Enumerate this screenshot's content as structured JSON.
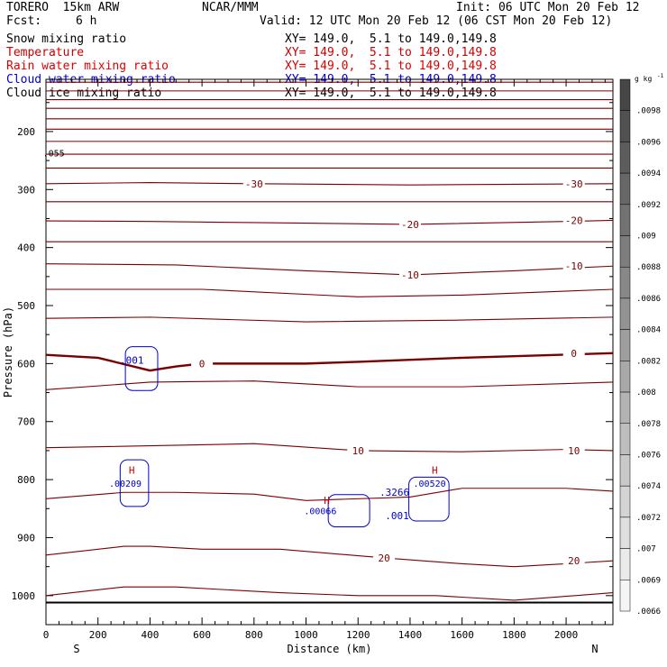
{
  "header": {
    "model": "TORERO  15km ARW",
    "center": "NCAR/MMM",
    "init": "Init: 06 UTC Mon 20 Feb 12",
    "fcst_label": "Fcst:",
    "fcst_value": "6 h",
    "valid": "Valid: 12 UTC Mon 20 Feb 12 (06 CST Mon 20 Feb 12)"
  },
  "fields": [
    {
      "name": "Snow mixing ratio",
      "color": "#000000",
      "xy": "XY= 149.0,  5.1 to 149.0,149.8"
    },
    {
      "name": "Temperature",
      "color": "#cc0000",
      "xy": "XY= 149.0,  5.1 to 149.0,149.8"
    },
    {
      "name": "Rain water mixing ratio",
      "color": "#dd0000",
      "xy": "XY= 149.0,  5.1 to 149.0,149.8"
    },
    {
      "name": "Cloud water mixing ratio",
      "color": "#0000cc",
      "xy": "XY= 149.0,  5.1 to 149.0,149.8"
    },
    {
      "name": "Cloud ice mixing ratio",
      "color": "#000000",
      "xy": "XY= 149.0,  5.1 to 149.0,149.8"
    }
  ],
  "colorbar": {
    "unit": "g kg",
    "unit_exp": "-1",
    "ticks": [
      ".0098",
      ".0096",
      ".0094",
      ".0092",
      ".009",
      ".0088",
      ".0086",
      ".0084",
      ".0082",
      ".008",
      ".0078",
      ".0076",
      ".0074",
      ".0072",
      ".007",
      ".0069",
      ".0066"
    ]
  },
  "chart_data": {
    "type": "contour cross-section",
    "xlabel": "Distance (km)",
    "ylabel": "Pressure (hPa)",
    "xlim": [
      0,
      2180
    ],
    "ylim": [
      1050,
      110
    ],
    "x_ticks": [
      0,
      200,
      400,
      600,
      800,
      1000,
      1200,
      1400,
      1600,
      1800,
      2000
    ],
    "y_ticks": [
      200,
      300,
      400,
      500,
      600,
      700,
      800,
      900,
      1000
    ],
    "endpoint_labels": {
      "left": "S",
      "right": "N"
    },
    "surface_pressure": 1012,
    "temperature_isotherms": [
      {
        "label": "",
        "points": [
          [
            0,
            115
          ],
          [
            2180,
            115
          ]
        ]
      },
      {
        "label": "",
        "points": [
          [
            0,
            130
          ],
          [
            2180,
            130
          ]
        ]
      },
      {
        "label": "",
        "points": [
          [
            0,
            145
          ],
          [
            2180,
            145
          ]
        ]
      },
      {
        "label": "",
        "points": [
          [
            0,
            160
          ],
          [
            2180,
            160
          ]
        ]
      },
      {
        "label": "",
        "points": [
          [
            0,
            178
          ],
          [
            2180,
            178
          ]
        ]
      },
      {
        "label": "",
        "points": [
          [
            0,
            196
          ],
          [
            2180,
            196
          ]
        ]
      },
      {
        "label": "",
        "points": [
          [
            0,
            217
          ],
          [
            2180,
            217
          ]
        ]
      },
      {
        "label": "",
        "points": [
          [
            0,
            239
          ],
          [
            2180,
            239
          ]
        ]
      },
      {
        "label": "",
        "points": [
          [
            0,
            263
          ],
          [
            2180,
            263
          ]
        ]
      },
      {
        "label": "-30",
        "points": [
          [
            0,
            290
          ],
          [
            400,
            288
          ],
          [
            800,
            290
          ],
          [
            1400,
            292
          ],
          [
            2180,
            290
          ]
        ]
      },
      {
        "label": "",
        "points": [
          [
            0,
            321
          ],
          [
            2180,
            321
          ]
        ]
      },
      {
        "label": "-20",
        "points": [
          [
            0,
            354
          ],
          [
            400,
            355
          ],
          [
            800,
            357
          ],
          [
            1400,
            360
          ],
          [
            2000,
            355
          ],
          [
            2180,
            353
          ]
        ]
      },
      {
        "label": "",
        "points": [
          [
            0,
            390
          ],
          [
            2180,
            390
          ]
        ]
      },
      {
        "label": "-10",
        "points": [
          [
            0,
            428
          ],
          [
            500,
            430
          ],
          [
            1000,
            440
          ],
          [
            1400,
            447
          ],
          [
            1800,
            440
          ],
          [
            2180,
            432
          ]
        ]
      },
      {
        "label": "",
        "points": [
          [
            0,
            472
          ],
          [
            600,
            472
          ],
          [
            1200,
            485
          ],
          [
            1600,
            482
          ],
          [
            2180,
            472
          ]
        ]
      },
      {
        "label": "",
        "points": [
          [
            0,
            522
          ],
          [
            400,
            520
          ],
          [
            1000,
            528
          ],
          [
            1600,
            525
          ],
          [
            2180,
            520
          ]
        ]
      },
      {
        "label": "0",
        "bold": true,
        "points": [
          [
            0,
            585
          ],
          [
            200,
            590
          ],
          [
            400,
            612
          ],
          [
            500,
            605
          ],
          [
            600,
            600
          ],
          [
            1000,
            600
          ],
          [
            1200,
            597
          ],
          [
            1600,
            590
          ],
          [
            2180,
            582
          ]
        ]
      },
      {
        "label": "",
        "points": [
          [
            0,
            645
          ],
          [
            400,
            632
          ],
          [
            800,
            630
          ],
          [
            1200,
            640
          ],
          [
            1600,
            640
          ],
          [
            2180,
            632
          ]
        ]
      },
      {
        "label": "10",
        "points": [
          [
            0,
            745
          ],
          [
            600,
            740
          ],
          [
            800,
            738
          ],
          [
            1200,
            750
          ],
          [
            1600,
            752
          ],
          [
            2000,
            748
          ],
          [
            2180,
            750
          ]
        ]
      },
      {
        "label": "",
        "points": [
          [
            0,
            833
          ],
          [
            300,
            822
          ],
          [
            500,
            822
          ],
          [
            800,
            825
          ],
          [
            1000,
            836
          ],
          [
            1400,
            830
          ],
          [
            1600,
            815
          ],
          [
            2000,
            815
          ],
          [
            2180,
            820
          ]
        ]
      },
      {
        "label": "20",
        "points": [
          [
            0,
            930
          ],
          [
            300,
            915
          ],
          [
            400,
            915
          ],
          [
            600,
            920
          ],
          [
            900,
            920
          ],
          [
            1300,
            935
          ],
          [
            1600,
            945
          ],
          [
            1800,
            950
          ],
          [
            2000,
            945
          ],
          [
            2180,
            940
          ]
        ]
      },
      {
        "label": "",
        "points": [
          [
            0,
            1000
          ],
          [
            300,
            985
          ],
          [
            500,
            985
          ],
          [
            900,
            995
          ],
          [
            1200,
            1000
          ],
          [
            1500,
            1000
          ],
          [
            1800,
            1008
          ],
          [
            2180,
            995
          ]
        ]
      }
    ],
    "cloud_water_labels": [
      {
        "text": ".001",
        "x": 330,
        "y": 600
      },
      {
        "text": ".3266",
        "x": 1340,
        "y": 828
      },
      {
        "text": ".001",
        "x": 1350,
        "y": 868
      }
    ],
    "rain_labels": [
      {
        "text": "H",
        "x": 330,
        "y": 790
      },
      {
        "text": "H",
        "x": 1080,
        "y": 842
      },
      {
        "text": "H",
        "x": 1495,
        "y": 790
      }
    ],
    "ice_labels": [
      {
        "text": ".055",
        "x": 30,
        "y": 243
      }
    ],
    "maxima_text": [
      {
        "text": ".00209",
        "x": 305,
        "y": 812
      },
      {
        "text": ".00066",
        "x": 1055,
        "y": 860
      },
      {
        "text": ".00520",
        "x": 1475,
        "y": 812
      }
    ]
  }
}
